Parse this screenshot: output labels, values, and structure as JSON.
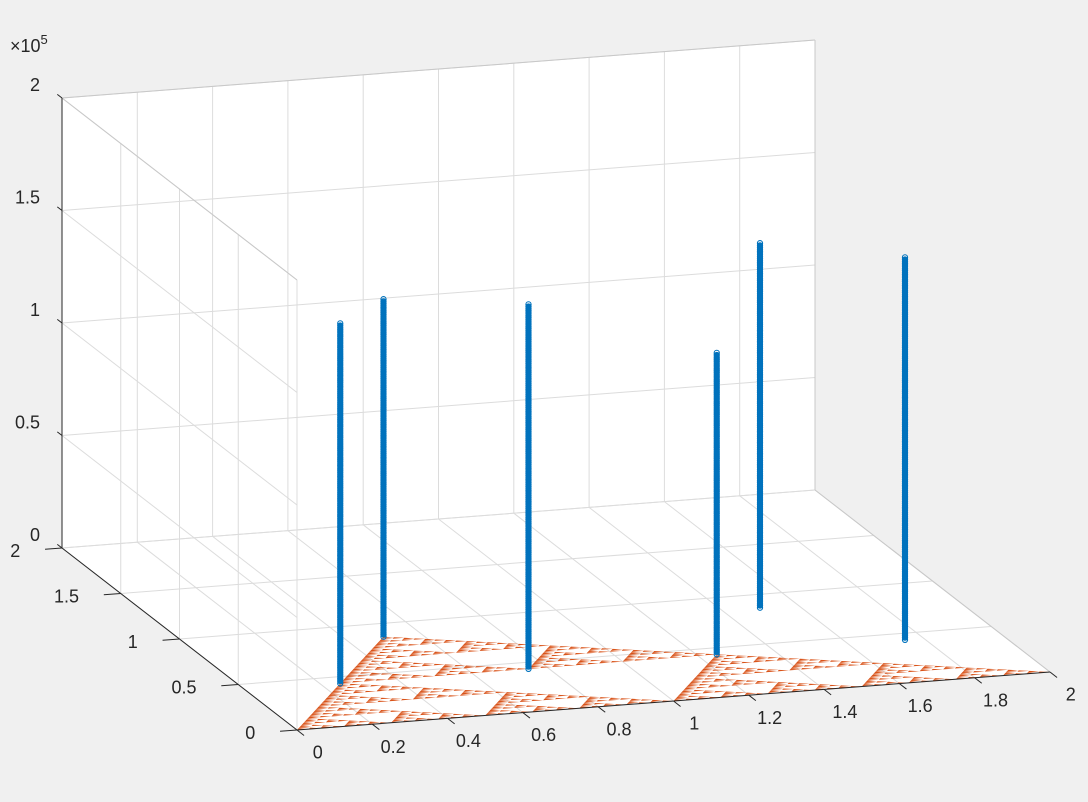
{
  "chart_data": {
    "type": "scatter3d",
    "title": "",
    "xlabel": "",
    "ylabel": "",
    "zlabel": "",
    "xlim": [
      0,
      2
    ],
    "ylim": [
      0,
      2
    ],
    "zlim": [
      0,
      200000
    ],
    "grid": true,
    "z_exponent": {
      "base": "×10",
      "power": "5"
    },
    "x_ticks": [
      "0",
      "0.2",
      "0.4",
      "0.6",
      "0.8",
      "1",
      "1.2",
      "1.4",
      "1.6",
      "1.8",
      "2"
    ],
    "y_ticks": [
      "0",
      "0.5",
      "1",
      "1.5",
      "2"
    ],
    "z_ticks": [
      "0",
      "0.5",
      "1",
      "1.5",
      "2"
    ],
    "colors": {
      "columns": "#0072bd",
      "triangle": "#d95319",
      "grid": "#dcdcdc",
      "axis": "#262626",
      "pane": "#ffffff",
      "background": "#f0f0f0"
    },
    "triangle": {
      "vertices": [
        [
          0,
          0
        ],
        [
          2,
          0
        ],
        [
          0.5,
          0.866
        ]
      ],
      "depth_shown": 6,
      "note_marks": "Sierpinski triangle of orange points at z = 0"
    },
    "columns": [
      {
        "x": 0.25,
        "y": 0.433,
        "z_max": 160000
      },
      {
        "x": 0.75,
        "y": 0.433,
        "z_max": 162000
      },
      {
        "x": 0.5,
        "y": 0.866,
        "z_max": 150000
      },
      {
        "x": 1.25,
        "y": 0.433,
        "z_max": 134000
      },
      {
        "x": 1.75,
        "y": 0.433,
        "z_max": 170000
      },
      {
        "x": 1.5,
        "y": 0.866,
        "z_max": 162000
      }
    ]
  }
}
